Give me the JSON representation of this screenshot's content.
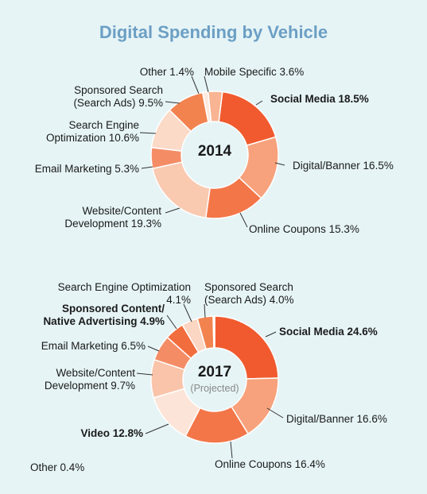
{
  "title": "Digital Spending by Vehicle",
  "colors": {
    "background": "#e6f4f6",
    "title": "#6c9fc4",
    "leader": "#333333"
  },
  "chart_data": [
    {
      "type": "pie",
      "variant": "donut",
      "center_label": "2014",
      "slices": [
        {
          "label": "Social Media 18.5%",
          "name": "Social Media",
          "value": 18.5,
          "color": "#f05a2e",
          "bold": true
        },
        {
          "label": "Digital/Banner 16.5%",
          "name": "Digital/Banner",
          "value": 16.5,
          "color": "#f7a27c",
          "bold": false
        },
        {
          "label": "Online Coupons 15.3%",
          "name": "Online Coupons",
          "value": 15.3,
          "color": "#f37649",
          "bold": false
        },
        {
          "label": "Website/Content\nDevelopment 19.3%",
          "name": "Website/Content Development",
          "value": 19.3,
          "color": "#f9c9b0",
          "bold": false
        },
        {
          "label": "Email Marketing 5.3%",
          "name": "Email Marketing",
          "value": 5.3,
          "color": "#f48d66",
          "bold": false
        },
        {
          "label": "Search Engine\nOptimization 10.6%",
          "name": "Search Engine Optimization",
          "value": 10.6,
          "color": "#fbdac8",
          "bold": false
        },
        {
          "label": "Sponsored Search\n(Search Ads) 9.5%",
          "name": "Sponsored Search (Search Ads)",
          "value": 9.5,
          "color": "#f2834f",
          "bold": false
        },
        {
          "label": "Other 1.4%",
          "name": "Other",
          "value": 1.4,
          "color": "#fde9de",
          "bold": false
        },
        {
          "label": "Mobile Specific 3.6%",
          "name": "Mobile Specific",
          "value": 3.6,
          "color": "#f8b493",
          "bold": false
        }
      ]
    },
    {
      "type": "pie",
      "variant": "donut",
      "center_label": "2017",
      "center_sublabel": "(Projected)",
      "slices": [
        {
          "label": "Social Media 24.6%",
          "name": "Social Media",
          "value": 24.6,
          "color": "#f05a2e",
          "bold": true
        },
        {
          "label": "Digital/Banner 16.6%",
          "name": "Digital/Banner",
          "value": 16.6,
          "color": "#f7a27c",
          "bold": false
        },
        {
          "label": "Online Coupons 16.4%",
          "name": "Online Coupons",
          "value": 16.4,
          "color": "#f37649",
          "bold": false
        },
        {
          "label": "Video 12.8%",
          "name": "Video",
          "value": 12.8,
          "color": "#fce5d8",
          "bold": true
        },
        {
          "label": "Website/Content\nDevelopment 9.7%",
          "name": "Website/Content Development",
          "value": 9.7,
          "color": "#f9c4aa",
          "bold": false
        },
        {
          "label": "Email Marketing 6.5%",
          "name": "Email Marketing",
          "value": 6.5,
          "color": "#f48d66",
          "bold": false
        },
        {
          "label": "Sponsored Content/\nNative Advertising 4.9%",
          "name": "Sponsored Content/Native Advertising",
          "value": 4.9,
          "color": "#f26d3d",
          "bold": true
        },
        {
          "label": "Search Engine Optimization\n4.1%",
          "name": "Search Engine Optimization",
          "value": 4.1,
          "color": "#fbd6c2",
          "bold": false
        },
        {
          "label": "Sponsored Search\n(Search Ads) 4.0%",
          "name": "Sponsored Search (Search Ads)",
          "value": 4.0,
          "color": "#f2834f",
          "bold": false
        },
        {
          "label": "Other 0.4%",
          "name": "Other",
          "value": 0.4,
          "color": "#fde9de",
          "bold": false
        }
      ]
    }
  ]
}
